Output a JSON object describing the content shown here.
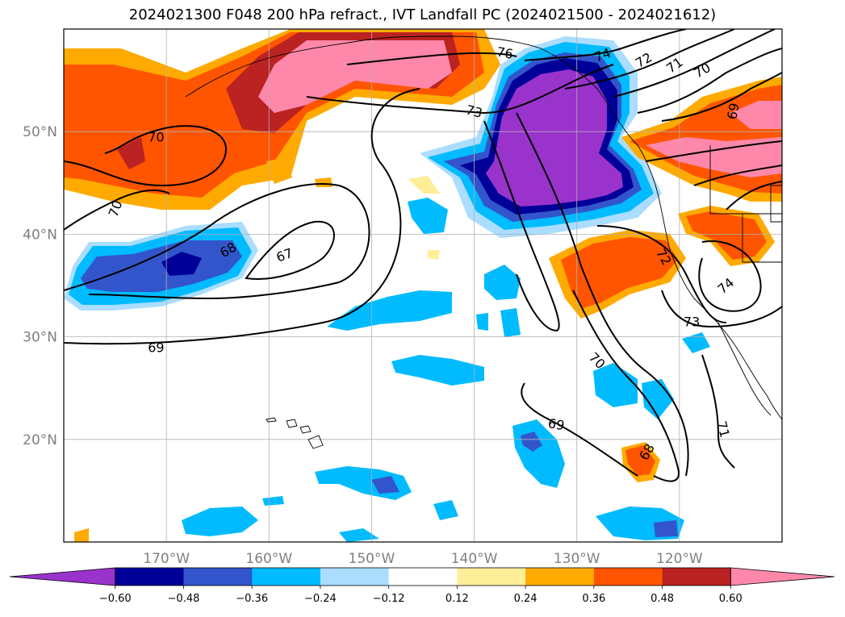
{
  "title": "2024021300 F048 200 hPa refract., IVT Landfall PC (2024021500 - 2024021612)",
  "map": {
    "lon_range": [
      -180,
      -110
    ],
    "lat_range": [
      10,
      60
    ],
    "lon_ticks": [
      {
        "value": -170,
        "label": "170°W"
      },
      {
        "value": -160,
        "label": "160°W"
      },
      {
        "value": -150,
        "label": "150°W"
      },
      {
        "value": -140,
        "label": "140°W"
      },
      {
        "value": -130,
        "label": "130°W"
      },
      {
        "value": -120,
        "label": "120°W"
      }
    ],
    "lat_ticks": [
      {
        "value": 20,
        "label": "20°N"
      },
      {
        "value": 30,
        "label": "30°N"
      },
      {
        "value": 40,
        "label": "40°N"
      },
      {
        "value": 50,
        "label": "50°N"
      }
    ],
    "grid": true,
    "contour_labels": [
      {
        "text": "70",
        "lon": -171,
        "lat": 49.5
      },
      {
        "text": "70",
        "lon": -175,
        "lat": 42.5,
        "rot": -70
      },
      {
        "text": "68",
        "lon": -164,
        "lat": 38.5,
        "rot": -30
      },
      {
        "text": "67",
        "lon": -158.5,
        "lat": 38,
        "rot": -20
      },
      {
        "text": "69",
        "lon": -171,
        "lat": 29
      },
      {
        "text": "73",
        "lon": -140,
        "lat": 52,
        "rot": 15
      },
      {
        "text": "76",
        "lon": -137,
        "lat": 57.7,
        "rot": 10
      },
      {
        "text": "74",
        "lon": -127.5,
        "lat": 57.5,
        "rot": -20
      },
      {
        "text": "72",
        "lon": -123.5,
        "lat": 57,
        "rot": -30
      },
      {
        "text": "71",
        "lon": -120.5,
        "lat": 56.5,
        "rot": -35
      },
      {
        "text": "70",
        "lon": -117.8,
        "lat": 56,
        "rot": -30
      },
      {
        "text": "69",
        "lon": -114.8,
        "lat": 52,
        "rot": -80
      },
      {
        "text": "72",
        "lon": -121.5,
        "lat": 37.8,
        "rot": 60
      },
      {
        "text": "74",
        "lon": -115.5,
        "lat": 35,
        "rot": -40
      },
      {
        "text": "73",
        "lon": -118.8,
        "lat": 31.5
      },
      {
        "text": "70",
        "lon": -128,
        "lat": 27.7,
        "rot": 45
      },
      {
        "text": "69",
        "lon": -132,
        "lat": 21.5,
        "rot": 10
      },
      {
        "text": "68",
        "lon": -123.2,
        "lat": 18.8,
        "rot": -60
      },
      {
        "text": "71",
        "lon": -115.7,
        "lat": 21,
        "rot": 75
      }
    ]
  },
  "colorbar": {
    "colors": [
      "#9933cc",
      "#000099",
      "#3355cc",
      "#00bbff",
      "#aaddff",
      "#ffffff",
      "#ffee99",
      "#ffaa00",
      "#ff5500",
      "#bb2222",
      "#ff88aa"
    ],
    "tick_labels": [
      "−0.60",
      "−0.48",
      "−0.36",
      "−0.24",
      "−0.12",
      "0.12",
      "0.24",
      "0.36",
      "0.48",
      "0.60"
    ]
  }
}
